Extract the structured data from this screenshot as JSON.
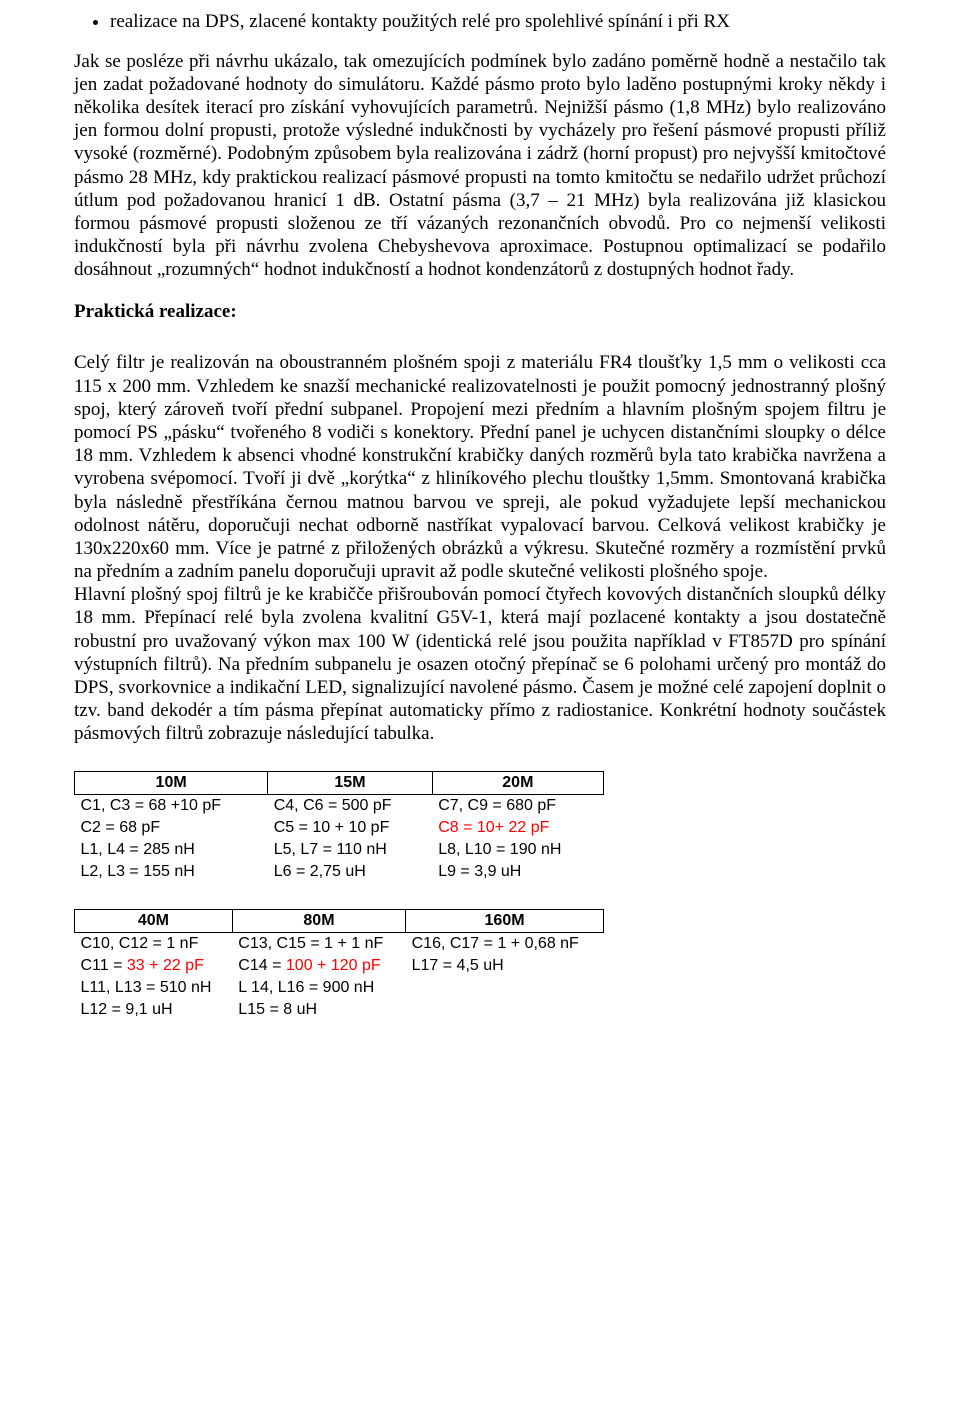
{
  "bullet": {
    "item1": "realizace na DPS, zlacené kontakty použitých relé pro spolehlivé spínání i při RX"
  },
  "para1": "Jak se posléze při návrhu ukázalo, tak omezujících podmínek bylo zadáno poměrně hodně a nestačilo tak jen zadat požadované hodnoty do simulátoru. Každé pásmo proto bylo laděno postupnými kroky někdy i několika desítek iterací pro získání vyhovujících parametrů. Nejnižší pásmo (1,8 MHz) bylo realizováno jen formou dolní propusti, protože výsledné indukčnosti by vycházely pro řešení pásmové propusti  příliž vysoké (rozměrné). Podobným způsobem byla realizována i zádrž (horní propust) pro nejvyšší kmitočtové pásmo 28 MHz, kdy praktickou realizací pásmové propusti na tomto kmitočtu se nedařilo udržet průchozí útlum pod požadovanou hranicí 1 dB. Ostatní pásma (3,7 – 21 MHz) byla realizována již klasickou formou pásmové propusti složenou ze tří vázaných rezonančních obvodů. Pro co nejmenší velikosti indukčností byla při návrhu zvolena Chebyshevova aproximace. Postupnou optimalizací se podařilo dosáhnout „rozumných“ hodnot indukčností a hodnot kondenzátorů z dostupných hodnot řady.",
  "heading1": "Praktická realizace:",
  "para2a": "Celý filtr je realizován na oboustranném plošném spoji z materiálu FR4 tloušťky 1,5 mm o velikosti cca 115 x 200 mm. Vzhledem ke snazší mechanické realizovatelnosti je použit pomocný jednostranný plošný spoj, který zároveň tvoří přední subpanel. Propojení mezi předním a hlavním plošným spojem filtru je pomocí PS „pásku“ tvořeného 8 vodiči s konektory. Přední panel je uchycen distančními sloupky o délce 18 mm. Vzhledem k absenci vhodné konstrukční krabičky daných rozměrů byla tato krabička navržena a vyrobena svépomocí. Tvoří ji dvě „korýtka“ z hliníkového plechu tlouštky 1,5mm. Smontovaná krabička byla následně přestříkána černou matnou barvou ve spreji, ale pokud vyžadujete lepší mechanickou odolnost nátěru, doporučuji nechat odborně nastříkat vypalovací barvou. Celková velikost krabičky je 130x220x60 mm. Více je patrné z přiložených obrázků a výkresu. Skutečné rozměry a rozmístění prvků na předním a zadním panelu doporučuji upravit až podle skutečné velikosti plošného spoje.",
  "para2b": "Hlavní plošný spoj filtrů je ke krabičče přišroubován pomocí čtyřech kovových distančních sloupků délky 18 mm. Přepínací relé byla zvolena kvalitní G5V-1, která mají pozlacené kontakty a jsou dostatečně robustní pro uvažovaný výkon max 100 W (identická relé jsou použita například v FT857D pro spínání výstupních filtrů). Na předním subpanelu je osazen otočný přepínač se 6 polohami určený pro montáž do DPS, svorkovnice a indikační LED, signalizující navolené pásmo. Časem je možné celé zapojení doplnit o tzv. band dekodér a tím pásma přepínat automaticky přímo z radiostanice. Konkrétní hodnoty součástek pásmových filtrů zobrazuje následující tabulka.",
  "table1": {
    "headers": [
      "10M",
      "15M",
      "20M"
    ],
    "rows": [
      [
        {
          "text": "C1, C3 = 68 +10 pF",
          "red": false
        },
        {
          "text": "C4, C6 = 500 pF",
          "red": false
        },
        {
          "text": "C7, C9 = 680 pF",
          "red": false
        }
      ],
      [
        {
          "text": "C2 = 68 pF",
          "red": false
        },
        {
          "text": "C5 = 10 + 10 pF",
          "red": false
        },
        {
          "text": "C8 = 10+ 22 pF",
          "red": true
        }
      ],
      [
        {
          "text": "L1, L4 = 285 nH",
          "red": false
        },
        {
          "text": "L5, L7 = 110 nH",
          "red": false
        },
        {
          "text": "L8, L10 = 190 nH",
          "red": false
        }
      ],
      [
        {
          "text": "L2, L3 = 155 nH",
          "red": false
        },
        {
          "text": "L6 = 2,75 uH",
          "red": false
        },
        {
          "text": "L9 = 3,9 uH",
          "red": false
        }
      ]
    ]
  },
  "table2": {
    "headers": [
      "40M",
      "80M",
      "160M"
    ],
    "rows": [
      [
        {
          "text": "C10, C12 = 1 nF",
          "red": false
        },
        {
          "text": "C13, C15 = 1 + 1 nF",
          "red": false
        },
        {
          "text": "C16, C17 = 1 + 0,68 nF",
          "red": false
        }
      ],
      [
        {
          "prefix": "C11 = ",
          "text": "33 + 22 pF",
          "red": true
        },
        {
          "prefix": "C14 = ",
          "text": "100 + 120 pF",
          "red": true
        },
        {
          "text": "L17 = 4,5 uH",
          "red": false
        }
      ],
      [
        {
          "text": "L11, L13 = 510 nH",
          "red": false
        },
        {
          "text": "L 14, L16 = 900 nH",
          "red": false
        },
        {
          "text": "",
          "red": false
        }
      ],
      [
        {
          "text": "L12 = 9,1 uH",
          "red": false
        },
        {
          "text": "L15 = 8 uH",
          "red": false
        },
        {
          "text": "",
          "red": false
        }
      ]
    ]
  }
}
